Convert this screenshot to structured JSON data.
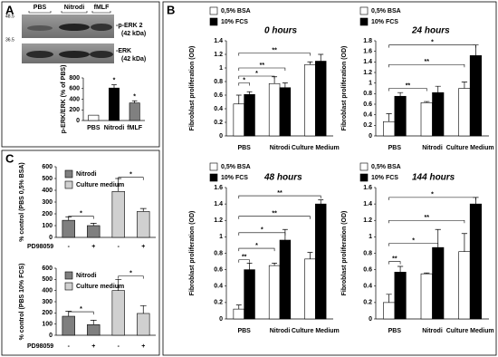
{
  "panel_labels": [
    "A",
    "B",
    "C"
  ],
  "blot": {
    "lanes": [
      "PBS",
      "Nitrodi",
      "fMLF"
    ],
    "bands": [
      [
        "-p-ERK 2",
        "(42 kDa)"
      ],
      [
        "-ERK",
        "(42 kDa)"
      ]
    ],
    "markers": [
      "48.5",
      "36.5"
    ]
  },
  "chart_data": [
    {
      "type": "bar",
      "ylabel": "p-ERK/ERK (% of PBS)",
      "categories": [
        "PBS",
        "Nitrodi",
        "fMLF"
      ],
      "series": [
        {
          "colors": [
            "#ffffff",
            "#000000",
            "#808080"
          ],
          "values": [
            100,
            610,
            330
          ],
          "errors": [
            null,
            60,
            40
          ]
        }
      ],
      "ylim": [
        0,
        800
      ],
      "yticks": [
        0,
        200,
        400,
        600,
        800
      ],
      "annotations": [
        "*",
        "*"
      ]
    },
    {
      "type": "bar",
      "title": "0 hours",
      "ylabel": "Fibroblast proliferation (OD)",
      "categories": [
        "PBS",
        "Nitrodi",
        "Culture Medium"
      ],
      "series": [
        {
          "name": "0,5% BSA",
          "color": "#ffffff",
          "values": [
            0.47,
            0.77,
            1.05
          ],
          "errors": [
            0.13,
            0.1,
            0.04
          ]
        },
        {
          "name": "10% FCS",
          "color": "#000000",
          "values": [
            0.61,
            0.71,
            1.1
          ],
          "errors": [
            0.04,
            0.07,
            0.1
          ]
        }
      ],
      "ylim": [
        0,
        1.4
      ],
      "yticks": [
        0,
        0.2,
        0.4,
        0.6,
        0.8,
        1,
        1.2,
        1.4
      ],
      "annotations": [
        "*",
        "*",
        "**",
        "**"
      ]
    },
    {
      "type": "bar",
      "title": "24 hours",
      "ylabel": "Fibroblast proliferation (OD)",
      "categories": [
        "PBS",
        "Nitrodi",
        "Culture Medium"
      ],
      "series": [
        {
          "name": "0,5% BSA",
          "color": "#ffffff",
          "values": [
            0.27,
            0.63,
            0.9
          ],
          "errors": [
            0.15,
            0.02,
            0.12
          ]
        },
        {
          "name": "10% FCS",
          "color": "#000000",
          "values": [
            0.75,
            0.82,
            1.52
          ],
          "errors": [
            0.07,
            0.12,
            0.2
          ]
        }
      ],
      "ylim": [
        0,
        1.8
      ],
      "yticks": [
        0,
        0.2,
        0.4,
        0.6,
        0.8,
        1,
        1.2,
        1.4,
        1.6,
        1.8
      ],
      "annotations": [
        "**",
        "**",
        "*"
      ]
    },
    {
      "type": "bar",
      "title": "48 hours",
      "ylabel": "Fibroblast proliferation (OD)",
      "categories": [
        "PBS",
        "Nitrodi",
        "Culture Medium"
      ],
      "series": [
        {
          "name": "0,5% BSA",
          "color": "#ffffff",
          "values": [
            0.12,
            0.65,
            0.73
          ],
          "errors": [
            0.05,
            0.03,
            0.08
          ]
        },
        {
          "name": "10% FCS",
          "color": "#000000",
          "values": [
            0.6,
            0.96,
            1.4
          ],
          "errors": [
            0.08,
            0.13,
            0.05
          ]
        }
      ],
      "ylim": [
        0,
        1.6
      ],
      "yticks": [
        0,
        0.2,
        0.4,
        0.6,
        0.8,
        1,
        1.2,
        1.4,
        1.6
      ],
      "annotations": [
        "**",
        "*",
        "*",
        "**",
        "**"
      ]
    },
    {
      "type": "bar",
      "title": "144 hours",
      "ylabel": "Fibroblast proliferation (OD)",
      "categories": [
        "PBS",
        "Nitrodi",
        "Culture Medium"
      ],
      "series": [
        {
          "name": "0,5% BSA",
          "color": "#ffffff",
          "values": [
            0.2,
            0.55,
            0.82
          ],
          "errors": [
            0.1,
            0.01,
            0.22
          ]
        },
        {
          "name": "10% FCS",
          "color": "#000000",
          "values": [
            0.57,
            0.87,
            1.4
          ],
          "errors": [
            0.07,
            0.22,
            0.08
          ]
        }
      ],
      "ylim": [
        0,
        1.6
      ],
      "yticks": [
        0,
        0.2,
        0.4,
        0.6,
        0.8,
        1,
        1.2,
        1.4,
        1.6
      ],
      "annotations": [
        "**",
        "*",
        "**",
        "*"
      ]
    },
    {
      "type": "bar",
      "ylabel": "% control (PBS 0,5% BSA)",
      "xlabel": "PD98059",
      "categories": [
        "-",
        "+",
        "-",
        "+"
      ],
      "series": [
        {
          "name": "Nitrodi",
          "color": "#7f7f7f",
          "values": [
            145,
            100,
            null,
            null
          ],
          "errors": [
            30,
            20,
            null,
            null
          ]
        },
        {
          "name": "Culture medium",
          "color": "#d0d0d0",
          "values": [
            null,
            null,
            390,
            220
          ],
          "errors": [
            null,
            null,
            110,
            25
          ]
        }
      ],
      "ylim": [
        0,
        600
      ],
      "yticks": [
        0,
        100,
        200,
        300,
        400,
        500,
        600
      ],
      "annotations": [
        "*",
        "*"
      ]
    },
    {
      "type": "bar",
      "ylabel": "% control (PBS 10% FCS)",
      "xlabel": "PD98059",
      "categories": [
        "-",
        "+",
        "-",
        "+"
      ],
      "series": [
        {
          "name": "Nitrodi",
          "color": "#7f7f7f",
          "values": [
            170,
            95,
            null,
            null
          ],
          "errors": [
            45,
            40,
            null,
            null
          ]
        },
        {
          "name": "Culture medium",
          "color": "#d0d0d0",
          "values": [
            null,
            null,
            400,
            195
          ],
          "errors": [
            null,
            null,
            100,
            70
          ]
        }
      ],
      "ylim": [
        0,
        600
      ],
      "yticks": [
        0,
        100,
        200,
        300,
        400,
        500,
        600
      ],
      "annotations": [
        "*",
        "*"
      ]
    }
  ]
}
